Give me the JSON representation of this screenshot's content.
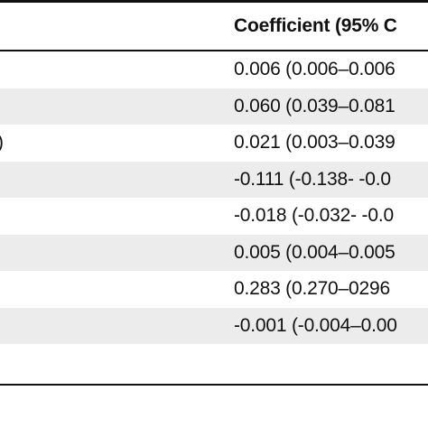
{
  "table": {
    "header": "Coefficient (95% C",
    "rows": [
      {
        "left": "",
        "coef": "0.006 (0.006–0.006",
        "shaded": false
      },
      {
        "left": "",
        "coef": "0.060 (0.039–0.081",
        "shaded": true
      },
      {
        "left": ")",
        "coef": "0.021 (0.003–0.039",
        "shaded": false
      },
      {
        "left": "",
        "coef": "-0.111 (-0.138- -0.0",
        "shaded": true
      },
      {
        "left": "",
        "coef": "-0.018 (-0.032- -0.0",
        "shaded": false
      },
      {
        "left": "",
        "coef": "0.005 (0.004–0.005",
        "shaded": true
      },
      {
        "left": "",
        "coef": "0.283 (0.270–0296",
        "shaded": false
      },
      {
        "left": "",
        "coef": "-0.001 (-0.004–0.00",
        "shaded": true
      },
      {
        "left": "",
        "coef": "",
        "shaded": false
      }
    ]
  }
}
